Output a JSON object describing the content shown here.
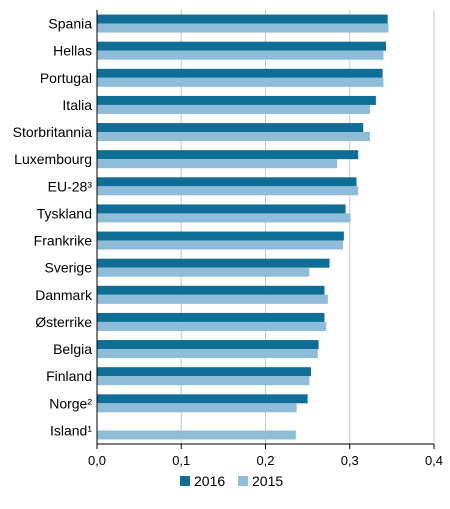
{
  "chart_data": {
    "type": "bar",
    "orientation": "horizontal",
    "categories": [
      "Spania",
      "Hellas",
      "Portugal",
      "Italia",
      "Storbritannia",
      "Luxembourg",
      "EU-28³",
      "Tyskland",
      "Frankrike",
      "Sverige",
      "Danmark",
      "Østerrike",
      "Belgia",
      "Finland",
      "Norge²",
      "Island¹"
    ],
    "series": [
      {
        "name": "2016",
        "color": "#0e6e95",
        "values": [
          0.345,
          0.343,
          0.339,
          0.331,
          0.316,
          0.31,
          0.308,
          0.295,
          0.293,
          0.276,
          0.27,
          0.27,
          0.263,
          0.254,
          0.25,
          null
        ]
      },
      {
        "name": "2015",
        "color": "#8fbcd8",
        "values": [
          0.346,
          0.34,
          0.34,
          0.324,
          0.324,
          0.285,
          0.31,
          0.301,
          0.292,
          0.252,
          0.274,
          0.272,
          0.262,
          0.252,
          0.237,
          0.236
        ]
      }
    ],
    "xlim": [
      0,
      0.4
    ],
    "xticks": [
      "0,0",
      "0,1",
      "0,2",
      "0,3",
      "0,4"
    ],
    "xtick_values": [
      0,
      0.1,
      0.2,
      0.3,
      0.4
    ],
    "title": "",
    "xlabel": "",
    "ylabel": "",
    "grid": true,
    "legend_position": "bottom"
  }
}
